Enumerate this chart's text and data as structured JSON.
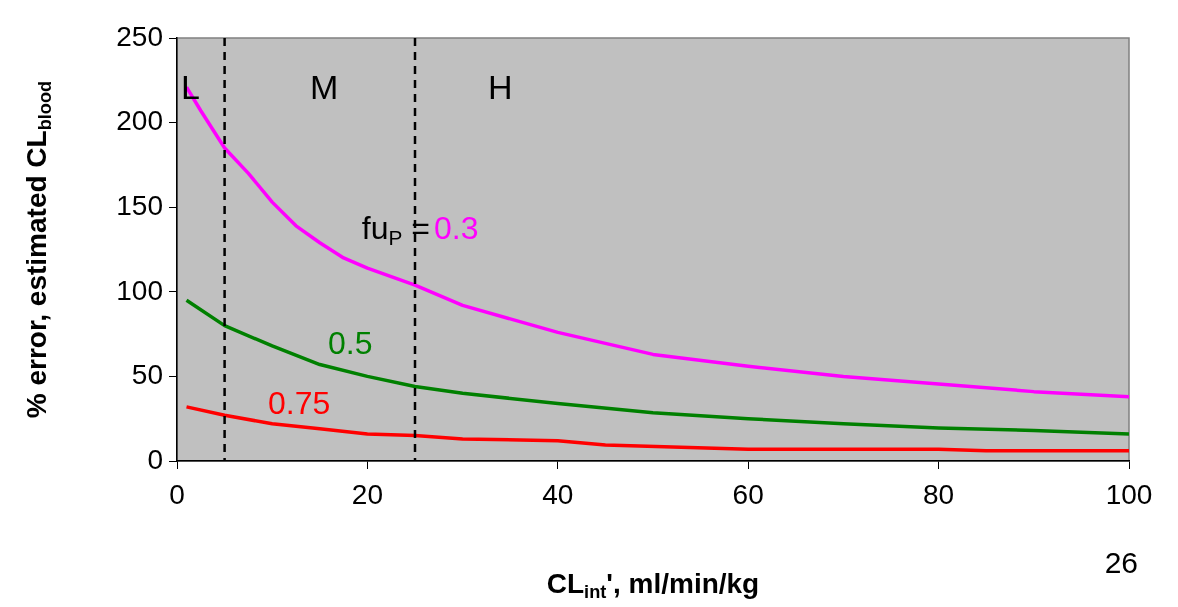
{
  "chart_data": {
    "type": "line",
    "xlabel": "CL$_{int}$', ml/min/kg",
    "ylabel": "% error, estimated CL$_{blood}$",
    "xlim": [
      0,
      100
    ],
    "xticks": [
      0,
      20,
      40,
      60,
      80,
      100
    ],
    "ylim": [
      0,
      250
    ],
    "yticks": [
      0,
      50,
      100,
      150,
      200,
      250
    ],
    "grid": false,
    "legend": false,
    "marker": "none",
    "line_style": "solid",
    "series": [
      {
        "name": "0.3",
        "color": "#ff00ff",
        "x": [
          1,
          2.5,
          5,
          7.5,
          10,
          12.5,
          15,
          17.5,
          20,
          25,
          30,
          40,
          50,
          60,
          70,
          80,
          90,
          100
        ],
        "values": [
          221,
          207,
          185,
          170,
          153,
          139,
          129,
          120,
          114,
          104,
          92,
          76,
          63,
          56,
          50,
          45.5,
          41,
          38
        ]
      },
      {
        "name": "0.5",
        "color": "#008000",
        "x": [
          1,
          5,
          10,
          15,
          20,
          25,
          30,
          40,
          50,
          60,
          70,
          80,
          90,
          100
        ],
        "values": [
          95,
          80,
          68,
          57,
          50,
          44,
          40,
          34,
          28.5,
          25,
          22,
          19.5,
          18,
          16
        ]
      },
      {
        "name": "0.75",
        "color": "#ff0000",
        "x": [
          1,
          5,
          10,
          15,
          20,
          25,
          30,
          40,
          45,
          60,
          80,
          85,
          100
        ],
        "values": [
          32,
          27,
          22,
          19,
          16,
          15,
          13,
          12,
          9.5,
          7,
          7,
          6,
          6
        ]
      }
    ],
    "ref_lines": [
      {
        "axis": "x",
        "value": 5,
        "color": "#000000",
        "line_style": "dashed"
      },
      {
        "axis": "x",
        "value": 25,
        "color": "#000000",
        "line_style": "dashed"
      }
    ],
    "annotations": [
      "L",
      "M",
      "H",
      "fu$_{P}$ =",
      "26"
    ]
  }
}
